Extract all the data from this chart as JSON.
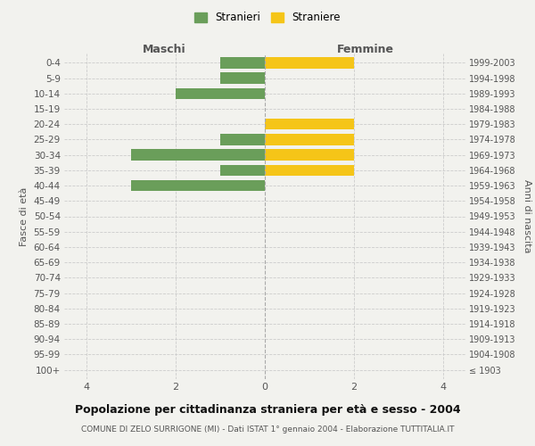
{
  "age_groups": [
    "100+",
    "95-99",
    "90-94",
    "85-89",
    "80-84",
    "75-79",
    "70-74",
    "65-69",
    "60-64",
    "55-59",
    "50-54",
    "45-49",
    "40-44",
    "35-39",
    "30-34",
    "25-29",
    "20-24",
    "15-19",
    "10-14",
    "5-9",
    "0-4"
  ],
  "birth_years": [
    "≤ 1903",
    "1904-1908",
    "1909-1913",
    "1914-1918",
    "1919-1923",
    "1924-1928",
    "1929-1933",
    "1934-1938",
    "1939-1943",
    "1944-1948",
    "1949-1953",
    "1954-1958",
    "1959-1963",
    "1964-1968",
    "1969-1973",
    "1974-1978",
    "1979-1983",
    "1984-1988",
    "1989-1993",
    "1994-1998",
    "1999-2003"
  ],
  "males": [
    0,
    0,
    0,
    0,
    0,
    0,
    0,
    0,
    0,
    0,
    0,
    0,
    3,
    1,
    3,
    1,
    0,
    0,
    2,
    1,
    1
  ],
  "females": [
    0,
    0,
    0,
    0,
    0,
    0,
    0,
    0,
    0,
    0,
    0,
    0,
    0,
    2,
    2,
    2,
    2,
    0,
    0,
    0,
    2
  ],
  "male_color": "#6a9e5a",
  "female_color": "#f5c518",
  "title": "Popolazione per cittadinanza straniera per età e sesso - 2004",
  "subtitle": "COMUNE DI ZELO SURRIGONE (MI) - Dati ISTAT 1° gennaio 2004 - Elaborazione TUTTITALIA.IT",
  "xlabel_left": "Maschi",
  "xlabel_right": "Femmine",
  "ylabel_left": "Fasce di età",
  "ylabel_right": "Anni di nascita",
  "legend_stranieri": "Stranieri",
  "legend_straniere": "Straniere",
  "xlim": 4.5,
  "xticks": [
    -4,
    -2,
    0,
    2,
    4
  ],
  "xtick_labels": [
    "4",
    "2",
    "0",
    "2",
    "4"
  ],
  "background_color": "#f2f2ee",
  "grid_color": "#cccccc",
  "bar_height": 0.72
}
